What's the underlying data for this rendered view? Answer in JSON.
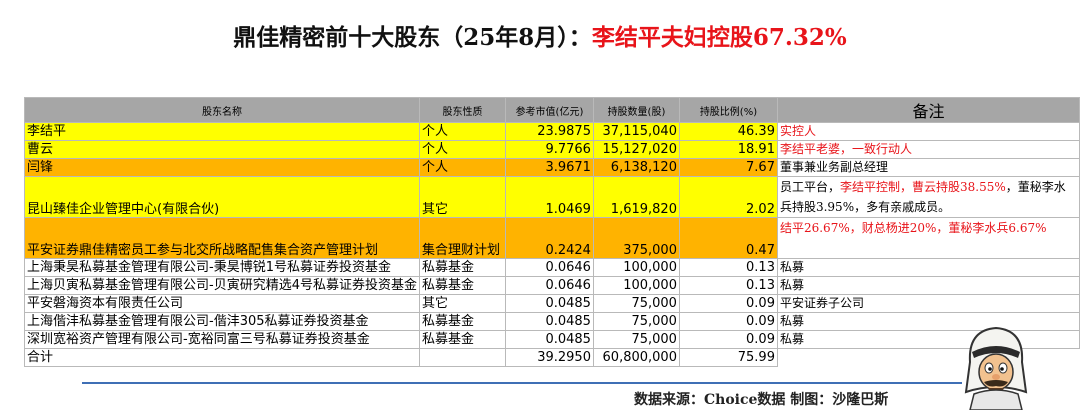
{
  "title": {
    "main": "鼎佳精密前十大股东（25年8月）：",
    "highlight": "李结平夫妇控股67.32%"
  },
  "headers": [
    "股东名称",
    "股东性质",
    "参考市值(亿元)",
    "持股数量(股)",
    "持股比例(%)",
    "备注"
  ],
  "rows": [
    {
      "name": "李结平",
      "type": "个人",
      "value": "23.9875",
      "shares": "37,115,040",
      "pct": "46.39",
      "note_red": "实控人",
      "note_black": "",
      "color": "yellow"
    },
    {
      "name": "曹云",
      "type": "个人",
      "value": "9.7766",
      "shares": "15,127,020",
      "pct": "18.91",
      "note_red": "李结平老婆，一致行动人",
      "note_black": "",
      "color": "yellow"
    },
    {
      "name": "闫锋",
      "type": "个人",
      "value": "3.9671",
      "shares": "6,138,120",
      "pct": "7.67",
      "note_red": "",
      "note_black": "董事兼业务副总经理",
      "color": "orange"
    },
    {
      "name": "昆山臻佳企业管理中心(有限合伙)",
      "type": "其它",
      "value": "1.0469",
      "shares": "1,619,820",
      "pct": "2.02",
      "note_pre": "员工平台，",
      "note_red": "李结平控制，曹云持股38.55%",
      "note_black": "，董秘李水兵持股3.95%，多有亲戚成员。",
      "color": "yellow"
    },
    {
      "name": "平安证券鼎佳精密员工参与北交所战略配售集合资产管理计划",
      "type": "集合理财计划",
      "value": "0.2424",
      "shares": "375,000",
      "pct": "0.47",
      "note_red": "结平26.67%，财总杨进20%，董秘李水兵6.67%",
      "note_black": "",
      "color": "orange"
    },
    {
      "name": "上海秉昊私募基金管理有限公司-秉昊博锐1号私募证券投资基金",
      "type": "私募基金",
      "value": "0.0646",
      "shares": "100,000",
      "pct": "0.13",
      "note_red": "",
      "note_black": "私募",
      "color": "white"
    },
    {
      "name": "上海贝寅私募基金管理有限公司-贝寅研究精选4号私募证券投资基金",
      "type": "私募基金",
      "value": "0.0646",
      "shares": "100,000",
      "pct": "0.13",
      "note_red": "",
      "note_black": "私募",
      "color": "white"
    },
    {
      "name": "平安磐海资本有限责任公司",
      "type": "其它",
      "value": "0.0485",
      "shares": "75,000",
      "pct": "0.09",
      "note_red": "",
      "note_black": "平安证券子公司",
      "color": "white"
    },
    {
      "name": "上海偕沣私募基金管理有限公司-偕沣305私募证券投资基金",
      "type": "私募基金",
      "value": "0.0485",
      "shares": "75,000",
      "pct": "0.09",
      "note_red": "",
      "note_black": "私募",
      "color": "white"
    },
    {
      "name": "深圳宽裕资产管理有限公司-宽裕同富三号私募证券投资基金",
      "type": "私募基金",
      "value": "0.0485",
      "shares": "75,000",
      "pct": "0.09",
      "note_red": "",
      "note_black": "私募",
      "color": "white"
    }
  ],
  "total": {
    "label": "合计",
    "value": "39.2950",
    "shares": "60,800,000",
    "pct": "75.99"
  },
  "source": "数据来源：Choice数据    制图：沙隆巴斯",
  "colors": {
    "yellow": "#ffff00",
    "orange": "#ffb300",
    "header": "#a6a6a6",
    "red": "#e8141a",
    "rule": "#3f6fb5"
  },
  "icons": {
    "mascot": "cartoon-man-with-headscarf-icon"
  }
}
